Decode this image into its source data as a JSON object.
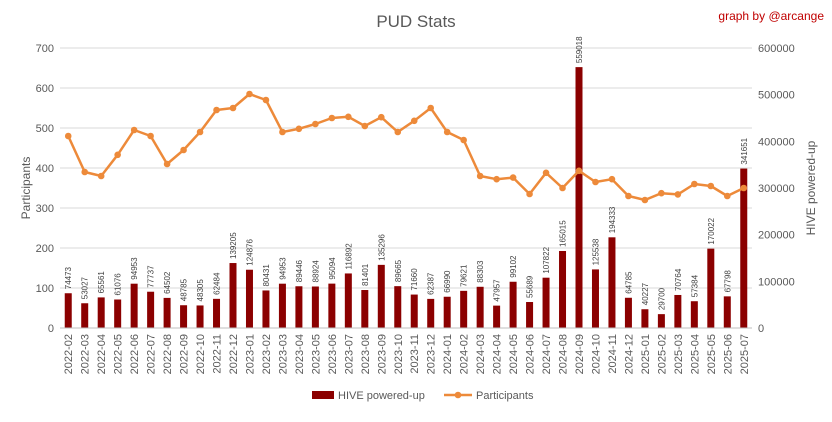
{
  "chart_data": {
    "type": "bar",
    "title": "PUD Stats",
    "credit": "graph by @arcange",
    "y_left_label": "Participants",
    "y_right_label": "HIVE powered-up",
    "y_left_lim": [
      0,
      700
    ],
    "y_left_ticks": [
      0,
      100,
      200,
      300,
      400,
      500,
      600,
      700
    ],
    "y_right_lim": [
      0,
      600000
    ],
    "y_right_ticks": [
      "0",
      "100000",
      "200000",
      "300000",
      "400000",
      "500000",
      "600000"
    ],
    "grid": true,
    "legend_position": "bottom",
    "categories": [
      "2022-02",
      "2022-03",
      "2022-04",
      "2022-05",
      "2022-06",
      "2022-07",
      "2022-08",
      "2022-09",
      "2022-10",
      "2022-11",
      "2022-12",
      "2023-01",
      "2023-02",
      "2023-03",
      "2023-04",
      "2023-05",
      "2023-06",
      "2023-07",
      "2023-08",
      "2023-09",
      "2023-10",
      "2023-11",
      "2023-12",
      "2024-01",
      "2024-02",
      "2024-03",
      "2024-04",
      "2024-05",
      "2024-06",
      "2024-07",
      "2024-08",
      "2024-09",
      "2024-10",
      "2024-11",
      "2024-12",
      "2025-01",
      "2025-02",
      "2025-03",
      "2025-04",
      "2025-05",
      "2025-06",
      "2025-07"
    ],
    "series": [
      {
        "name": "HIVE powered-up",
        "kind": "bar",
        "axis": "right",
        "color": "#8b0000",
        "values": [
          74473,
          53027,
          65561,
          61076,
          94953,
          77737,
          64502,
          48785,
          48305,
          62484,
          139205,
          124876,
          80431,
          94953,
          89446,
          88924,
          95094,
          116892,
          81401,
          135296,
          89665,
          71660,
          62387,
          66990,
          79621,
          88303,
          47957,
          99102,
          55689,
          107822,
          165015,
          559018,
          125538,
          194333,
          64785,
          40227,
          29700,
          70764,
          57384,
          170022,
          67798,
          341651
        ],
        "labels": [
          "74473",
          "53027",
          "65561",
          "61076",
          "94953",
          "77737",
          "64502",
          "48785",
          "48305",
          "62484",
          "139205",
          "124876",
          "80431",
          "94953",
          "89446",
          "88924",
          "95094",
          "116892",
          "81401",
          "135296",
          "89665",
          "71660",
          "62387",
          "66990",
          "79621",
          "88303",
          "47957",
          "99102",
          "55689",
          "107822",
          "165015",
          "559018",
          "125538",
          "194333",
          "64785",
          "40227",
          "29700",
          "70764",
          "57384",
          "170022",
          "67798",
          "341651"
        ]
      },
      {
        "name": "Participants",
        "kind": "line",
        "axis": "left",
        "color": "#ed8a3a",
        "values": [
          480,
          390,
          380,
          433,
          495,
          480,
          410,
          445,
          490,
          545,
          550,
          585,
          570,
          490,
          498,
          510,
          525,
          528,
          505,
          527,
          490,
          518,
          550,
          490,
          470,
          380,
          372,
          376,
          335,
          388,
          350,
          393,
          365,
          372,
          330,
          320,
          337,
          334,
          360,
          355,
          330,
          350
        ]
      }
    ]
  }
}
